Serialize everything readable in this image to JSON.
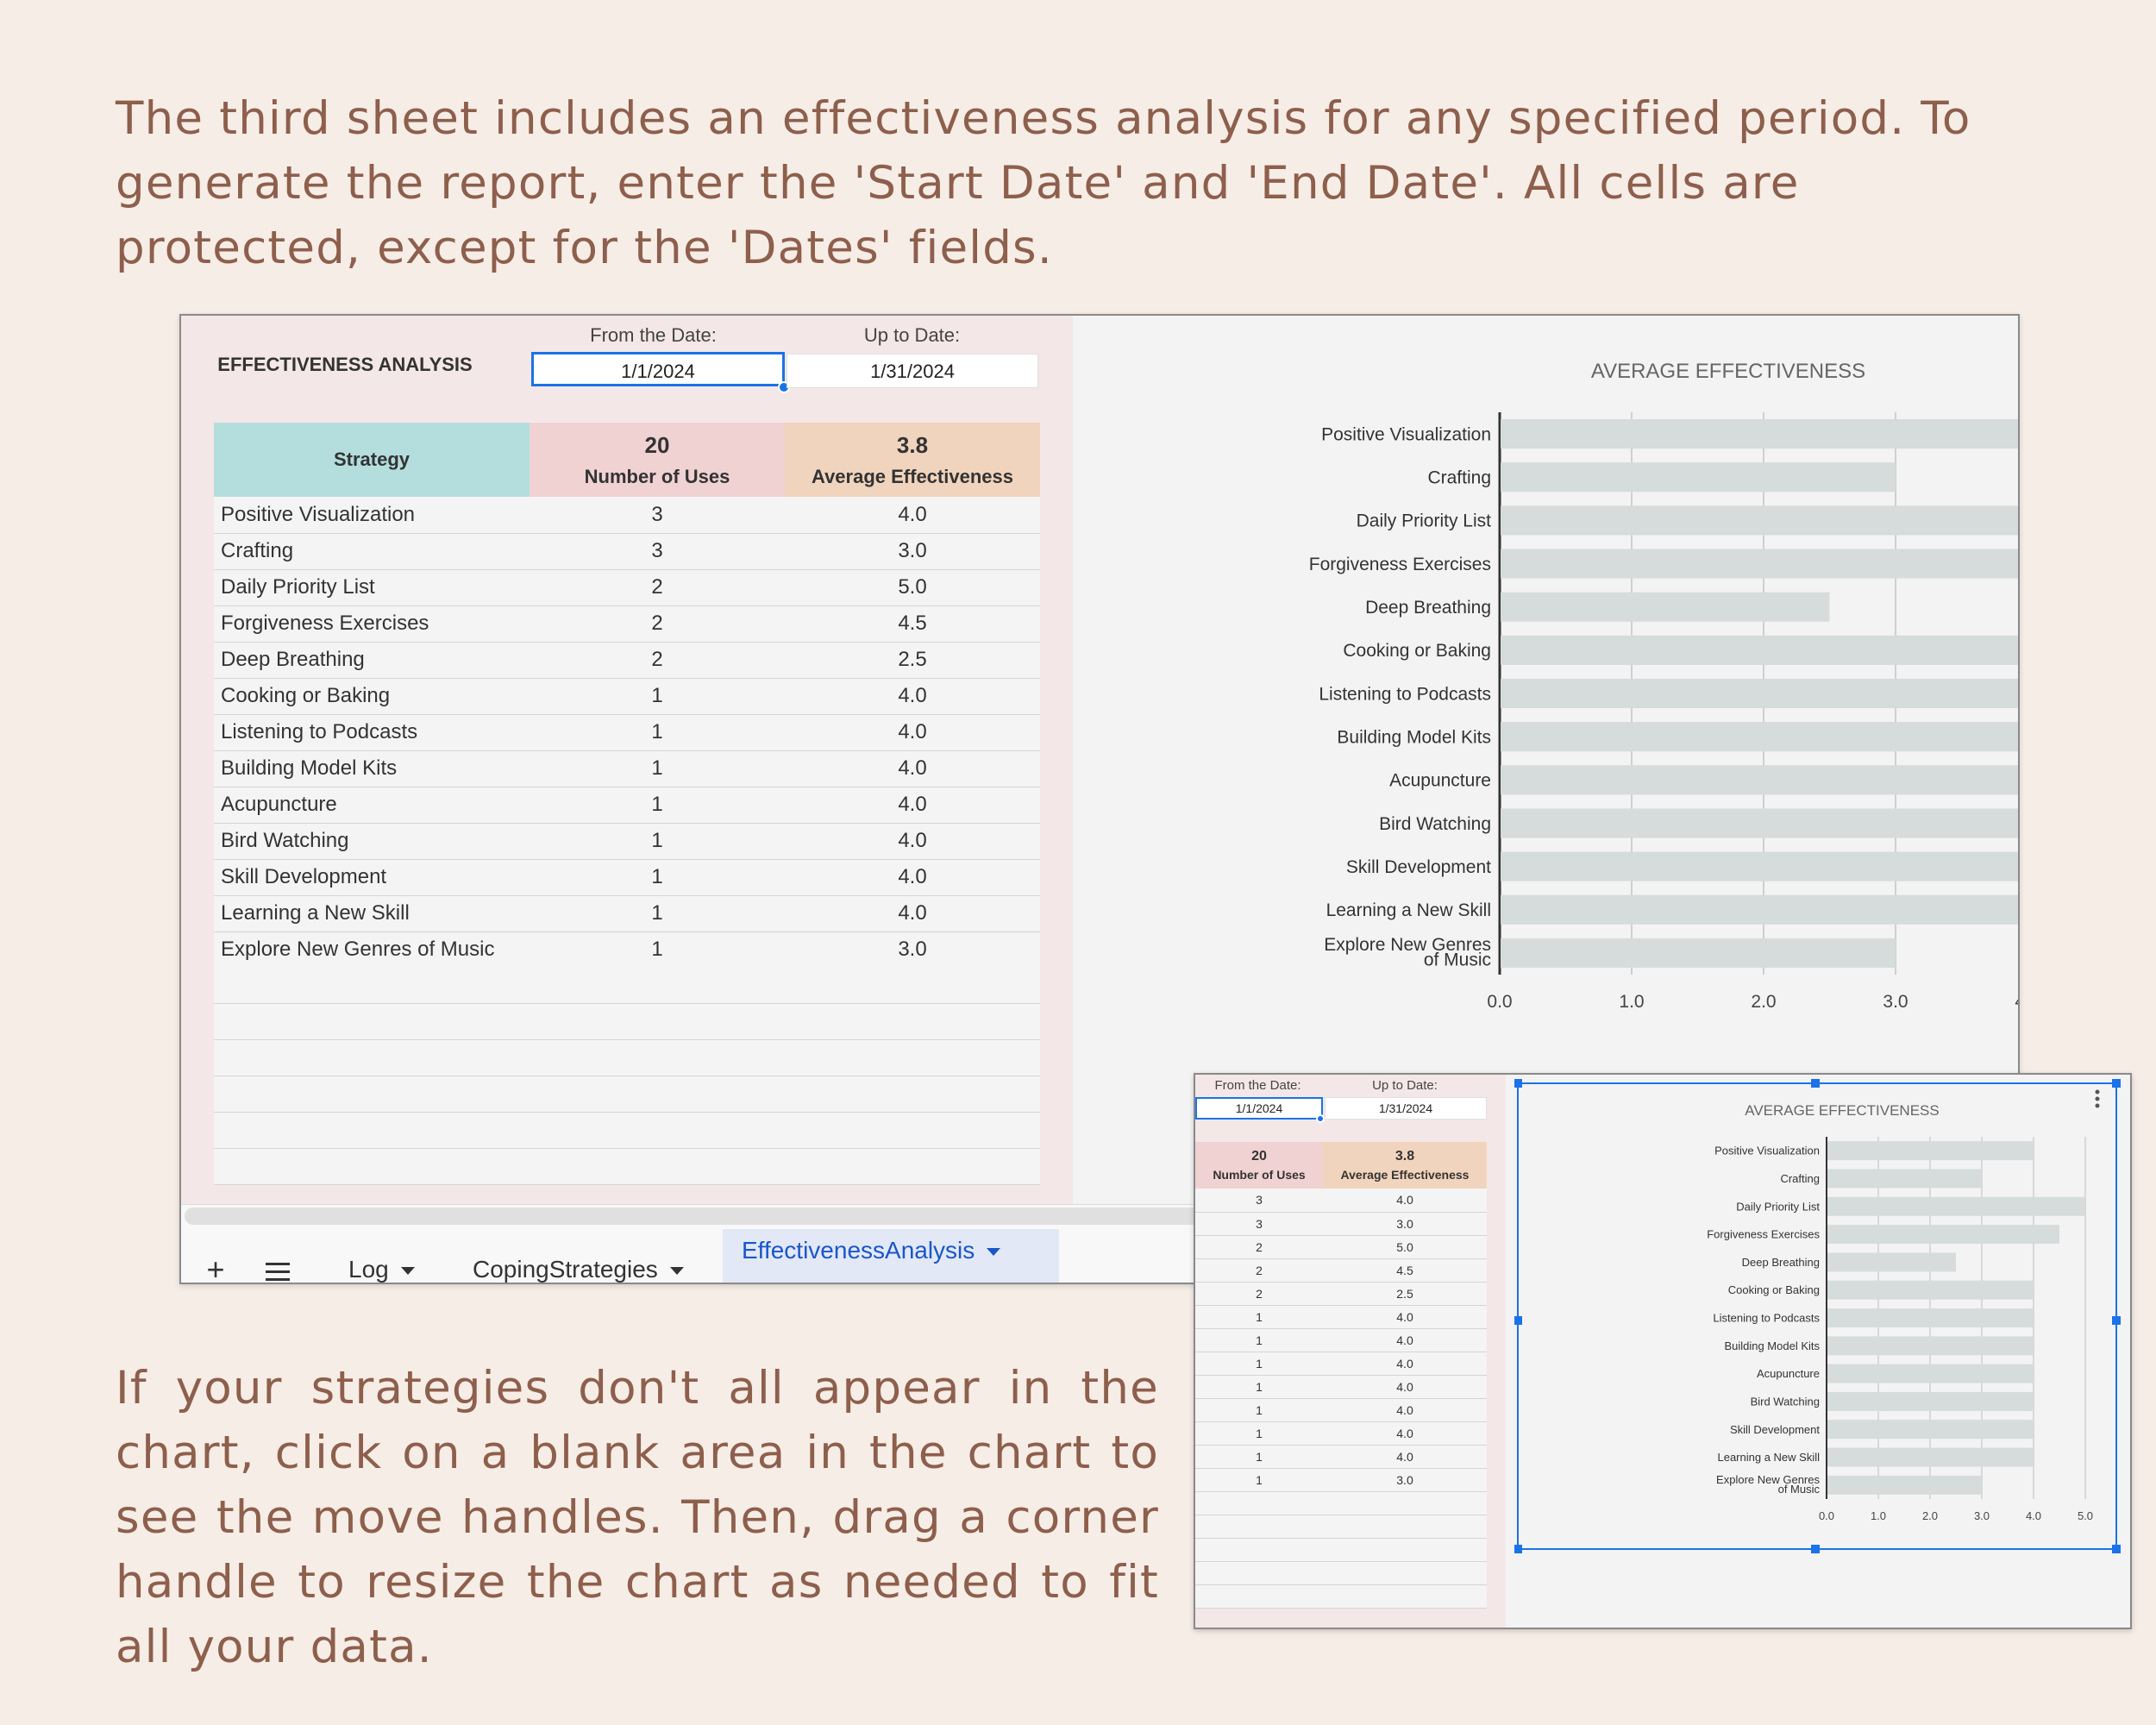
{
  "intro_text": "The third sheet includes an effectiveness analysis for any specified period. To generate the report, enter the 'Start Date' and 'End Date'. All cells are protected, except for the 'Dates' fields.",
  "help_text": "If your strategies don't all appear in the chart, click on a blank area in the chart to see the move handles. Then, drag a corner handle to resize the chart as needed to fit all your data.",
  "sheet": {
    "title": "EFFECTIVENESS ANALYSIS",
    "from_label": "From the Date:",
    "upto_label": "Up to Date:",
    "from_date": "1/1/2024",
    "upto_date": "1/31/2024",
    "headers": {
      "strategy": "Strategy",
      "total_uses": "20",
      "uses_label": "Number of Uses",
      "avg_total": "3.8",
      "avg_label": "Average Effectiveness"
    },
    "rows": [
      {
        "strategy": "Positive Visualization",
        "uses": "3",
        "avg": "4.0"
      },
      {
        "strategy": "Crafting",
        "uses": "3",
        "avg": "3.0"
      },
      {
        "strategy": "Daily Priority List",
        "uses": "2",
        "avg": "5.0"
      },
      {
        "strategy": "Forgiveness Exercises",
        "uses": "2",
        "avg": "4.5"
      },
      {
        "strategy": "Deep Breathing",
        "uses": "2",
        "avg": "2.5"
      },
      {
        "strategy": "Cooking or Baking",
        "uses": "1",
        "avg": "4.0"
      },
      {
        "strategy": "Listening to Podcasts",
        "uses": "1",
        "avg": "4.0"
      },
      {
        "strategy": "Building Model Kits",
        "uses": "1",
        "avg": "4.0"
      },
      {
        "strategy": "Acupuncture",
        "uses": "1",
        "avg": "4.0"
      },
      {
        "strategy": "Bird Watching",
        "uses": "1",
        "avg": "4.0"
      },
      {
        "strategy": "Skill Development",
        "uses": "1",
        "avg": "4.0"
      },
      {
        "strategy": "Learning a New Skill",
        "uses": "1",
        "avg": "4.0"
      },
      {
        "strategy": "Explore New Genres of Music",
        "uses": "1",
        "avg": "3.0"
      }
    ],
    "tabs": {
      "add": "+",
      "log": "Log",
      "coping": "CopingStrategies",
      "effectiveness": "EffectivenessAnalysis"
    },
    "chart_menu_icon": "kebab-menu-icon"
  },
  "colors": {
    "bar": "#d5dcdb",
    "strategy_header": "#b4dede",
    "uses_header": "#f0d2d3",
    "avg_header": "#f1d4bd",
    "selection": "#1a73e8",
    "text_brown": "#8d5f4c"
  },
  "chart_data": [
    {
      "type": "bar",
      "orientation": "horizontal",
      "title": "AVERAGE EFFECTIVENESS",
      "categories": [
        "Positive Visualization",
        "Crafting",
        "Daily Priority List",
        "Forgiveness Exercises",
        "Deep Breathing",
        "Cooking or Baking",
        "Listening to Podcasts",
        "Building Model Kits",
        "Acupuncture",
        "Bird Watching",
        "Skill Development",
        "Learning a New Skill",
        "Explore New Genres of Music"
      ],
      "values": [
        4.0,
        3.0,
        5.0,
        4.5,
        2.5,
        4.0,
        4.0,
        4.0,
        4.0,
        4.0,
        4.0,
        4.0,
        3.0
      ],
      "xticks": [
        "0.0",
        "1.0",
        "2.0",
        "3.0",
        "4.0",
        "5.0"
      ],
      "xlim": [
        0,
        5
      ],
      "grid": true
    },
    {
      "type": "bar",
      "orientation": "horizontal",
      "title": "AVERAGE EFFECTIVENESS",
      "categories": [
        "Positive Visualization",
        "Crafting",
        "Daily Priority List",
        "Forgiveness Exercises",
        "Deep Breathing",
        "Cooking or Baking",
        "Listening to Podcasts",
        "Building Model Kits",
        "Acupuncture",
        "Bird Watching",
        "Skill Development",
        "Learning a New Skill",
        "Explore New Genres of Music"
      ],
      "values": [
        4.0,
        3.0,
        5.0,
        4.5,
        2.5,
        4.0,
        4.0,
        4.0,
        4.0,
        4.0,
        4.0,
        4.0,
        3.0
      ],
      "xticks": [
        "0.0",
        "1.0",
        "2.0",
        "3.0",
        "4.0",
        "5.0"
      ],
      "xlim": [
        0,
        5
      ],
      "grid": true
    }
  ]
}
